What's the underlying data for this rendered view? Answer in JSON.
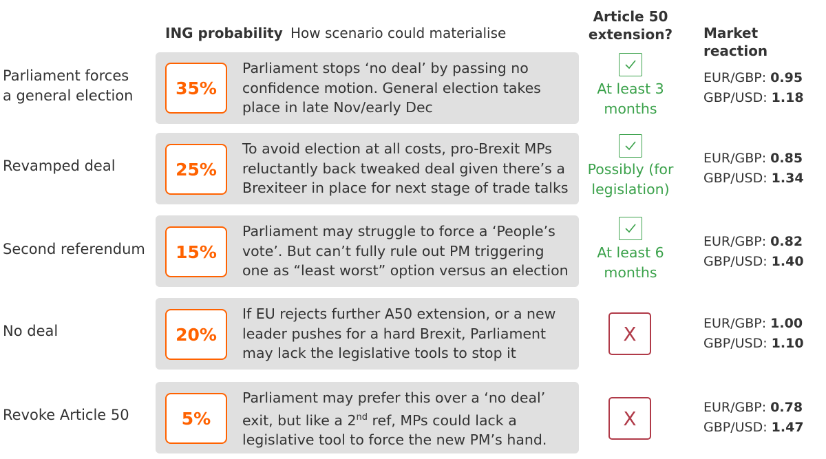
{
  "headers": {
    "probability": "ING probability",
    "scenario": "How scenario could materialise",
    "extension_line1": "Article 50",
    "extension_line2": "extension?",
    "market": "Market reaction"
  },
  "colors": {
    "accent_orange": "#ff6200",
    "check_green": "#3aa14a",
    "cross_red": "#b03a48",
    "panel_grey": "#e0e0e0"
  },
  "rows": [
    {
      "label_lines": [
        "Parliament forces",
        "a general election"
      ],
      "probability": "35%",
      "description_lines": [
        "Parliament stops ‘no deal’ by passing no",
        "confidence motion. General election takes",
        "place in late Nov/early Dec"
      ],
      "extension": {
        "mark": "check-icon",
        "text_lines": [
          "At least 3",
          "months"
        ]
      },
      "market": {
        "eurgbp_label": "EUR/GBP: ",
        "eurgbp_value": "0.95",
        "gbpusd_label": "GBP/USD: ",
        "gbpusd_value": "1.18"
      }
    },
    {
      "label_lines": [
        "Revamped deal"
      ],
      "probability": "25%",
      "description_lines": [
        "To avoid election at all costs, pro-Brexit MPs",
        "reluctantly back tweaked deal given there’s a",
        "Brexiteer in place for next stage of trade talks"
      ],
      "extension": {
        "mark": "check-icon",
        "text_lines": [
          "Possibly (for",
          "legislation)"
        ]
      },
      "market": {
        "eurgbp_label": "EUR/GBP: ",
        "eurgbp_value": "0.85",
        "gbpusd_label": "GBP/USD: ",
        "gbpusd_value": "1.34"
      }
    },
    {
      "label_lines": [
        "Second referendum"
      ],
      "probability": "15%",
      "description_lines": [
        "Parliament may struggle to force a ‘People’s",
        "vote’. But can’t fully rule out PM triggering",
        "one as “least worst” option versus an election"
      ],
      "extension": {
        "mark": "check-icon",
        "text_lines": [
          "At least 6",
          "months"
        ]
      },
      "market": {
        "eurgbp_label": "EUR/GBP: ",
        "eurgbp_value": "0.82",
        "gbpusd_label": "GBP/USD: ",
        "gbpusd_value": "1.40"
      }
    },
    {
      "label_lines": [
        "No deal"
      ],
      "probability": "20%",
      "description_lines": [
        "If EU rejects further A50 extension, or a new",
        "leader pushes for a hard Brexit, Parliament",
        "may lack the legislative tools to stop it"
      ],
      "extension": {
        "mark": "cross-icon",
        "cross_glyph": "X"
      },
      "market": {
        "eurgbp_label": "EUR/GBP: ",
        "eurgbp_value": "1.00",
        "gbpusd_label": "GBP/USD: ",
        "gbpusd_value": "1.10"
      }
    },
    {
      "label_lines": [
        "Revoke Article 50"
      ],
      "probability": "5%",
      "description_lines": [
        "Parliament may prefer this over a ‘no deal’",
        "exit, but like a 2",
        "nd",
        " ref, MPs could lack a",
        "legislative tool to force the new PM’s hand."
      ],
      "extension": {
        "mark": "cross-icon",
        "cross_glyph": "X"
      },
      "market": {
        "eurgbp_label": "EUR/GBP: ",
        "eurgbp_value": "0.78",
        "gbpusd_label": "GBP/USD: ",
        "gbpusd_value": "1.47"
      }
    }
  ]
}
